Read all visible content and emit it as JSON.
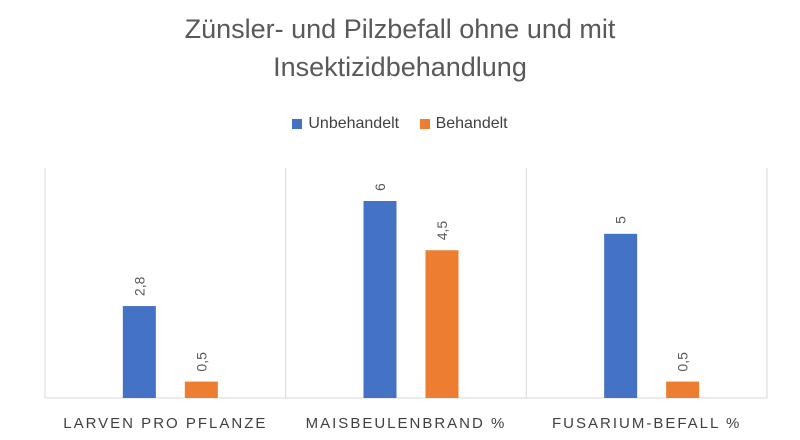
{
  "chart_data": {
    "type": "bar",
    "title_lines": [
      "Zünsler- und Pilzbefall ohne und mit",
      "Insektizidbehandlung"
    ],
    "categories": [
      "LARVEN PRO PFLANZE",
      "MAISBEULENBRAND %",
      "FUSARIUM-BEFALL %"
    ],
    "series": [
      {
        "name": "Unbehandelt",
        "values": [
          2.8,
          6,
          5
        ],
        "labels": [
          "2,8",
          "6",
          "5"
        ],
        "color": "#4472C4"
      },
      {
        "name": "Behandelt",
        "values": [
          0.5,
          4.5,
          0.5
        ],
        "labels": [
          "0,5",
          "4,5",
          "0,5"
        ],
        "color": "#ED7D31"
      }
    ],
    "ylim": [
      0,
      7
    ],
    "legend_position": "top",
    "grid": false,
    "value_labels_rotated": true
  }
}
